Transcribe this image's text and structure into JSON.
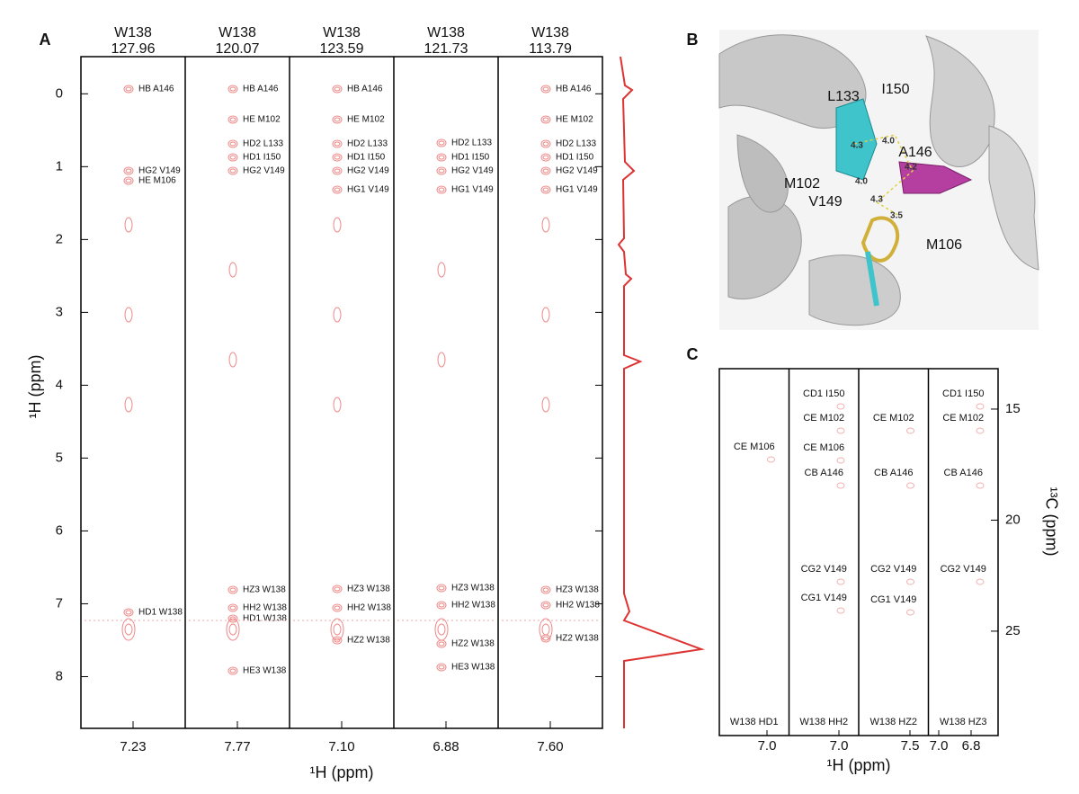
{
  "panel_a": {
    "label": "A",
    "ylabel": "¹H (ppm)",
    "xlabel": "¹H (ppm)",
    "ylim": [
      -0.51,
      8.71
    ],
    "yticks": [
      0,
      1,
      2,
      3,
      4,
      5,
      6,
      7,
      8
    ],
    "strips": [
      {
        "residue": "W138",
        "shift": "127.96",
        "xtick": "7.23",
        "peaks": [
          "HB A146",
          "HG2 V149",
          "HE M106",
          "HD1 W138"
        ]
      },
      {
        "residue": "W138",
        "shift": "120.07",
        "xtick": "7.77",
        "peaks": [
          "HB A146",
          "HE M102",
          "HD2 L133",
          "HD1 I150",
          "HG2 V149",
          "HZ3 W138",
          "HH2 W138",
          "HD1 W138",
          "HE3 W138"
        ]
      },
      {
        "residue": "W138",
        "shift": "123.59",
        "xtick": "7.10",
        "peaks": [
          "HB A146",
          "HE M102",
          "HD2 L133",
          "HD1 I150",
          "HG2 V149",
          "HG1 V149",
          "HZ3 W138",
          "HH2 W138",
          "HZ2 W138"
        ]
      },
      {
        "residue": "W138",
        "shift": "121.73",
        "xtick": "6.88",
        "peaks": [
          "HD2 L133",
          "HD1 I150",
          "HG2 V149",
          "HG1 V149",
          "HZ3 W138",
          "HH2 W138",
          "HZ2 W138",
          "HE3 W138"
        ]
      },
      {
        "residue": "W138",
        "shift": "113.79",
        "xtick": "7.60",
        "peaks": [
          "HB A146",
          "HE M102",
          "HD2 L133",
          "HD1 I150",
          "HG2 V149",
          "HG1 V149",
          "HZ3 W138",
          "HH2 W138",
          "HZ2 W138"
        ]
      }
    ]
  },
  "panel_b": {
    "label": "B",
    "residues": [
      "L133",
      "I150",
      "A146",
      "M102",
      "V149",
      "M106"
    ],
    "distances": [
      "4.3",
      "4.0",
      "4.2",
      "4.0",
      "4.3",
      "3.5"
    ]
  },
  "panel_c": {
    "label": "C",
    "ylabel": "¹³C (ppm)",
    "xlabel": "¹H (ppm)",
    "ylim": [
      13.18,
      29.7
    ],
    "yticks": [
      15,
      20,
      25
    ],
    "strips": [
      {
        "name": "W138 HD1",
        "xticks": [
          "7.0"
        ],
        "peaks": [
          "CE M106"
        ]
      },
      {
        "name": "W138 HH2",
        "xticks": [
          "7.0"
        ],
        "peaks": [
          "CD1 I150",
          "CE M102",
          "CE M106",
          "CB A146",
          "CG2 V149",
          "CG1 V149"
        ]
      },
      {
        "name": "W138 HZ2",
        "xticks": [
          "7.5"
        ],
        "peaks": [
          "CE M102",
          "CB A146",
          "CG2 V149",
          "CG1 V149"
        ]
      },
      {
        "name": "W138 HZ3",
        "xticks": [
          "7.0",
          "6.8"
        ],
        "peaks": [
          "CD1 I150",
          "CE M102",
          "CB A146",
          "CG2 V149"
        ]
      }
    ]
  }
}
